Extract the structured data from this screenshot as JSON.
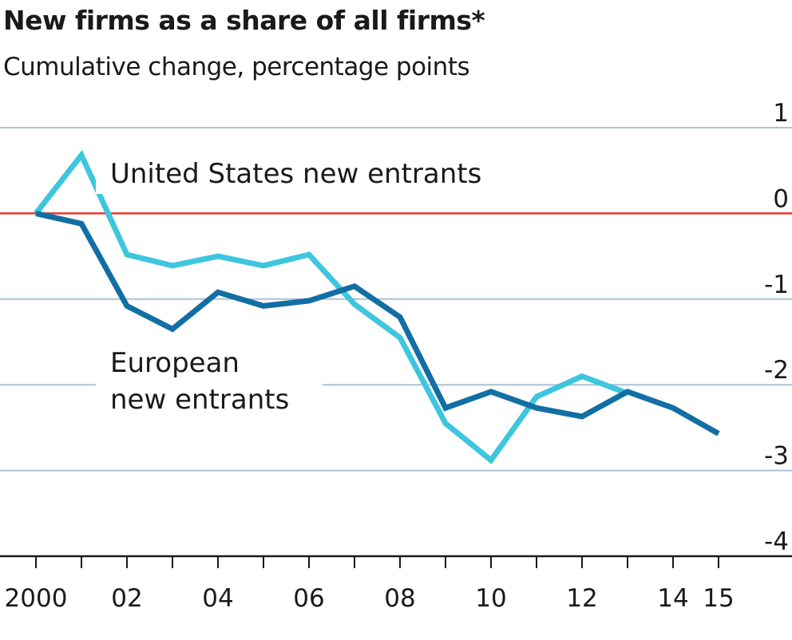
{
  "title": "New firms as a share of all firms*",
  "subtitle": "Cumulative change, percentage points",
  "chart_data": {
    "type": "line",
    "title": "New firms as a share of all firms*",
    "subtitle": "Cumulative change, percentage points",
    "xlabel": "",
    "ylabel": "",
    "x": [
      2000,
      2001,
      2002,
      2003,
      2004,
      2005,
      2006,
      2007,
      2008,
      2009,
      2010,
      2011,
      2012,
      2013,
      2014,
      2015
    ],
    "x_tick_values": [
      2000,
      2002,
      2004,
      2006,
      2008,
      2010,
      2012,
      2014,
      2015
    ],
    "x_tick_labels": [
      "2000",
      "02",
      "04",
      "06",
      "08",
      "10",
      "12",
      "14",
      "15"
    ],
    "xlim": [
      1999.9,
      2016.3
    ],
    "ylim": [
      -4,
      1
    ],
    "y_ticks": [
      1,
      0,
      -1,
      -2,
      -3,
      -4
    ],
    "y_tick_labels": [
      "1",
      "0",
      "-1",
      "-2",
      "-3",
      "-4"
    ],
    "zero_line": true,
    "grid": true,
    "series": [
      {
        "name": "United States new entrants",
        "color": "#3ec6de",
        "x": [
          2000,
          2001,
          2002,
          2003,
          2004,
          2005,
          2006,
          2007,
          2008,
          2009,
          2010,
          2011,
          2012,
          2013
        ],
        "values": [
          0,
          0.68,
          -0.48,
          -0.61,
          -0.5,
          -0.61,
          -0.48,
          -1.06,
          -1.45,
          -2.45,
          -2.88,
          -2.14,
          -1.9,
          -2.1
        ]
      },
      {
        "name": "European new entrants",
        "color": "#126fa4",
        "x": [
          2000,
          2001,
          2002,
          2003,
          2004,
          2005,
          2006,
          2007,
          2008,
          2009,
          2010,
          2011,
          2012,
          2013,
          2014,
          2015
        ],
        "values": [
          0,
          -0.12,
          -1.08,
          -1.35,
          -0.92,
          -1.08,
          -1.02,
          -0.85,
          -1.21,
          -2.27,
          -2.08,
          -2.27,
          -2.37,
          -2.08,
          -2.27,
          -2.57
        ]
      }
    ],
    "annotations": [
      {
        "text": "United States new entrants",
        "series": "United States new entrants"
      },
      {
        "text": "European",
        "series": "European new entrants"
      },
      {
        "text": "new entrants",
        "series": "European new entrants"
      }
    ]
  },
  "colors": {
    "zero_line": "#e23a2e",
    "grid": "#a9c4d6",
    "axis": "#1a1a1a"
  }
}
